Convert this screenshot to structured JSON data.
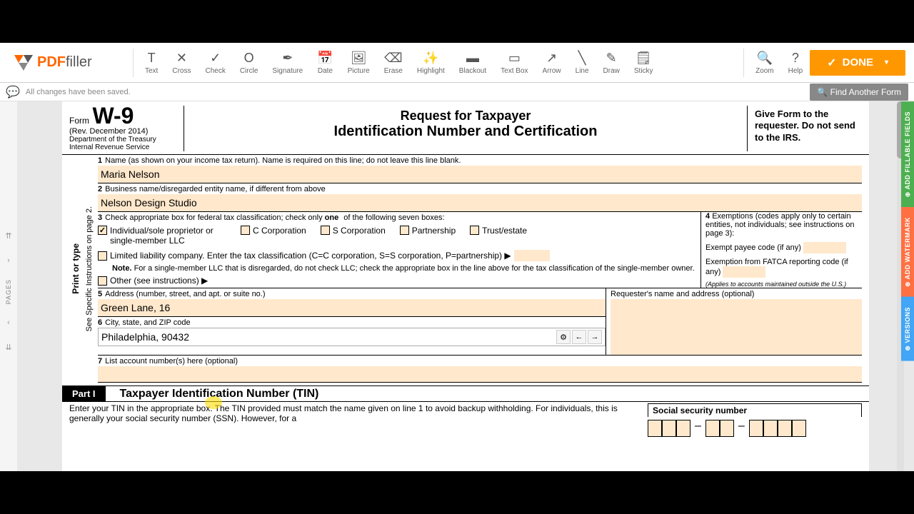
{
  "logo": {
    "pdf": "PDF",
    "filler": "filler"
  },
  "tools": [
    {
      "label": "Text",
      "icon": "T"
    },
    {
      "label": "Cross",
      "icon": "✕"
    },
    {
      "label": "Check",
      "icon": "✓"
    },
    {
      "label": "Circle",
      "icon": "O"
    },
    {
      "label": "Signature",
      "icon": "✒"
    },
    {
      "label": "Date",
      "icon": "📅"
    },
    {
      "label": "Picture",
      "icon": "🖼"
    },
    {
      "label": "Erase",
      "icon": "⌫"
    },
    {
      "label": "Highlight",
      "icon": "✨"
    },
    {
      "label": "Blackout",
      "icon": "▬"
    },
    {
      "label": "Text Box",
      "icon": "▭"
    },
    {
      "label": "Arrow",
      "icon": "↗"
    },
    {
      "label": "Line",
      "icon": "╲"
    },
    {
      "label": "Draw",
      "icon": "✎"
    },
    {
      "label": "Sticky",
      "icon": "🗒"
    }
  ],
  "right_tools": [
    {
      "label": "Zoom",
      "icon": "🔍"
    },
    {
      "label": "Help",
      "icon": "?"
    }
  ],
  "done": "DONE",
  "status": "All changes have been saved.",
  "find": "Find Another Form",
  "nav_label": "PAGES",
  "side_tabs": [
    {
      "label": "ADD FILLABLE FIELDS",
      "cls": "green"
    },
    {
      "label": "ADD WATERMARK",
      "cls": "red"
    },
    {
      "label": "VERSIONS",
      "cls": "blue"
    }
  ],
  "form": {
    "form_label": "Form",
    "w9": "W-9",
    "rev": "(Rev. December 2014)",
    "dept1": "Department of the Treasury",
    "dept2": "Internal Revenue Service",
    "title1": "Request for Taxpayer",
    "title2": "Identification Number and Certification",
    "give": "Give Form to the requester. Do not send to the IRS.",
    "vtext1": "Print or type",
    "vtext2": "See Specific Instructions on page 2.",
    "line1_label": "Name (as shown on your income tax return). Name is required on this line; do not leave this line blank.",
    "line1_value": "Maria Nelson",
    "line2_label": "Business name/disregarded entity name, if different from above",
    "line2_value": "Nelson Design Studio",
    "line3_label": "Check appropriate box for federal tax classification; check only one of the following seven boxes:",
    "cb1": "Individual/sole proprietor or single-member LLC",
    "cb2": "C Corporation",
    "cb3": "S Corporation",
    "cb4": "Partnership",
    "cb5": "Trust/estate",
    "llc": "Limited liability company. Enter the tax classification (C=C corporation, S=S corporation, P=partnership) ▶",
    "note": "Note. For a single-member LLC that is disregarded, do not check LLC; check the appropriate box in the line above for the tax classification of the single-member owner.",
    "other": "Other (see instructions) ▶",
    "line4_label": "Exemptions (codes apply only to certain entities, not individuals; see instructions on page 3):",
    "exempt1": "Exempt payee code (if any)",
    "exempt2": "Exemption from FATCA reporting code (if any)",
    "exempt_note": "(Applies to accounts maintained outside the U.S.)",
    "line5_label": "Address (number, street, and apt. or suite no.)",
    "line5_value": "Green Lane, 16",
    "line6_label": "City, state, and ZIP code",
    "line6_value": "Philadelphia, 90432",
    "line7_label": "List account number(s) here (optional)",
    "requester": "Requester's name and address (optional)",
    "part1": "Part I",
    "part1_title": "Taxpayer Identification Number (TIN)",
    "part1_text": "Enter your TIN in the appropriate box. The TIN provided must match the name given on line 1 to avoid backup withholding. For individuals, this is generally your social security number (SSN). However, for a",
    "ssn_label": "Social security number"
  }
}
